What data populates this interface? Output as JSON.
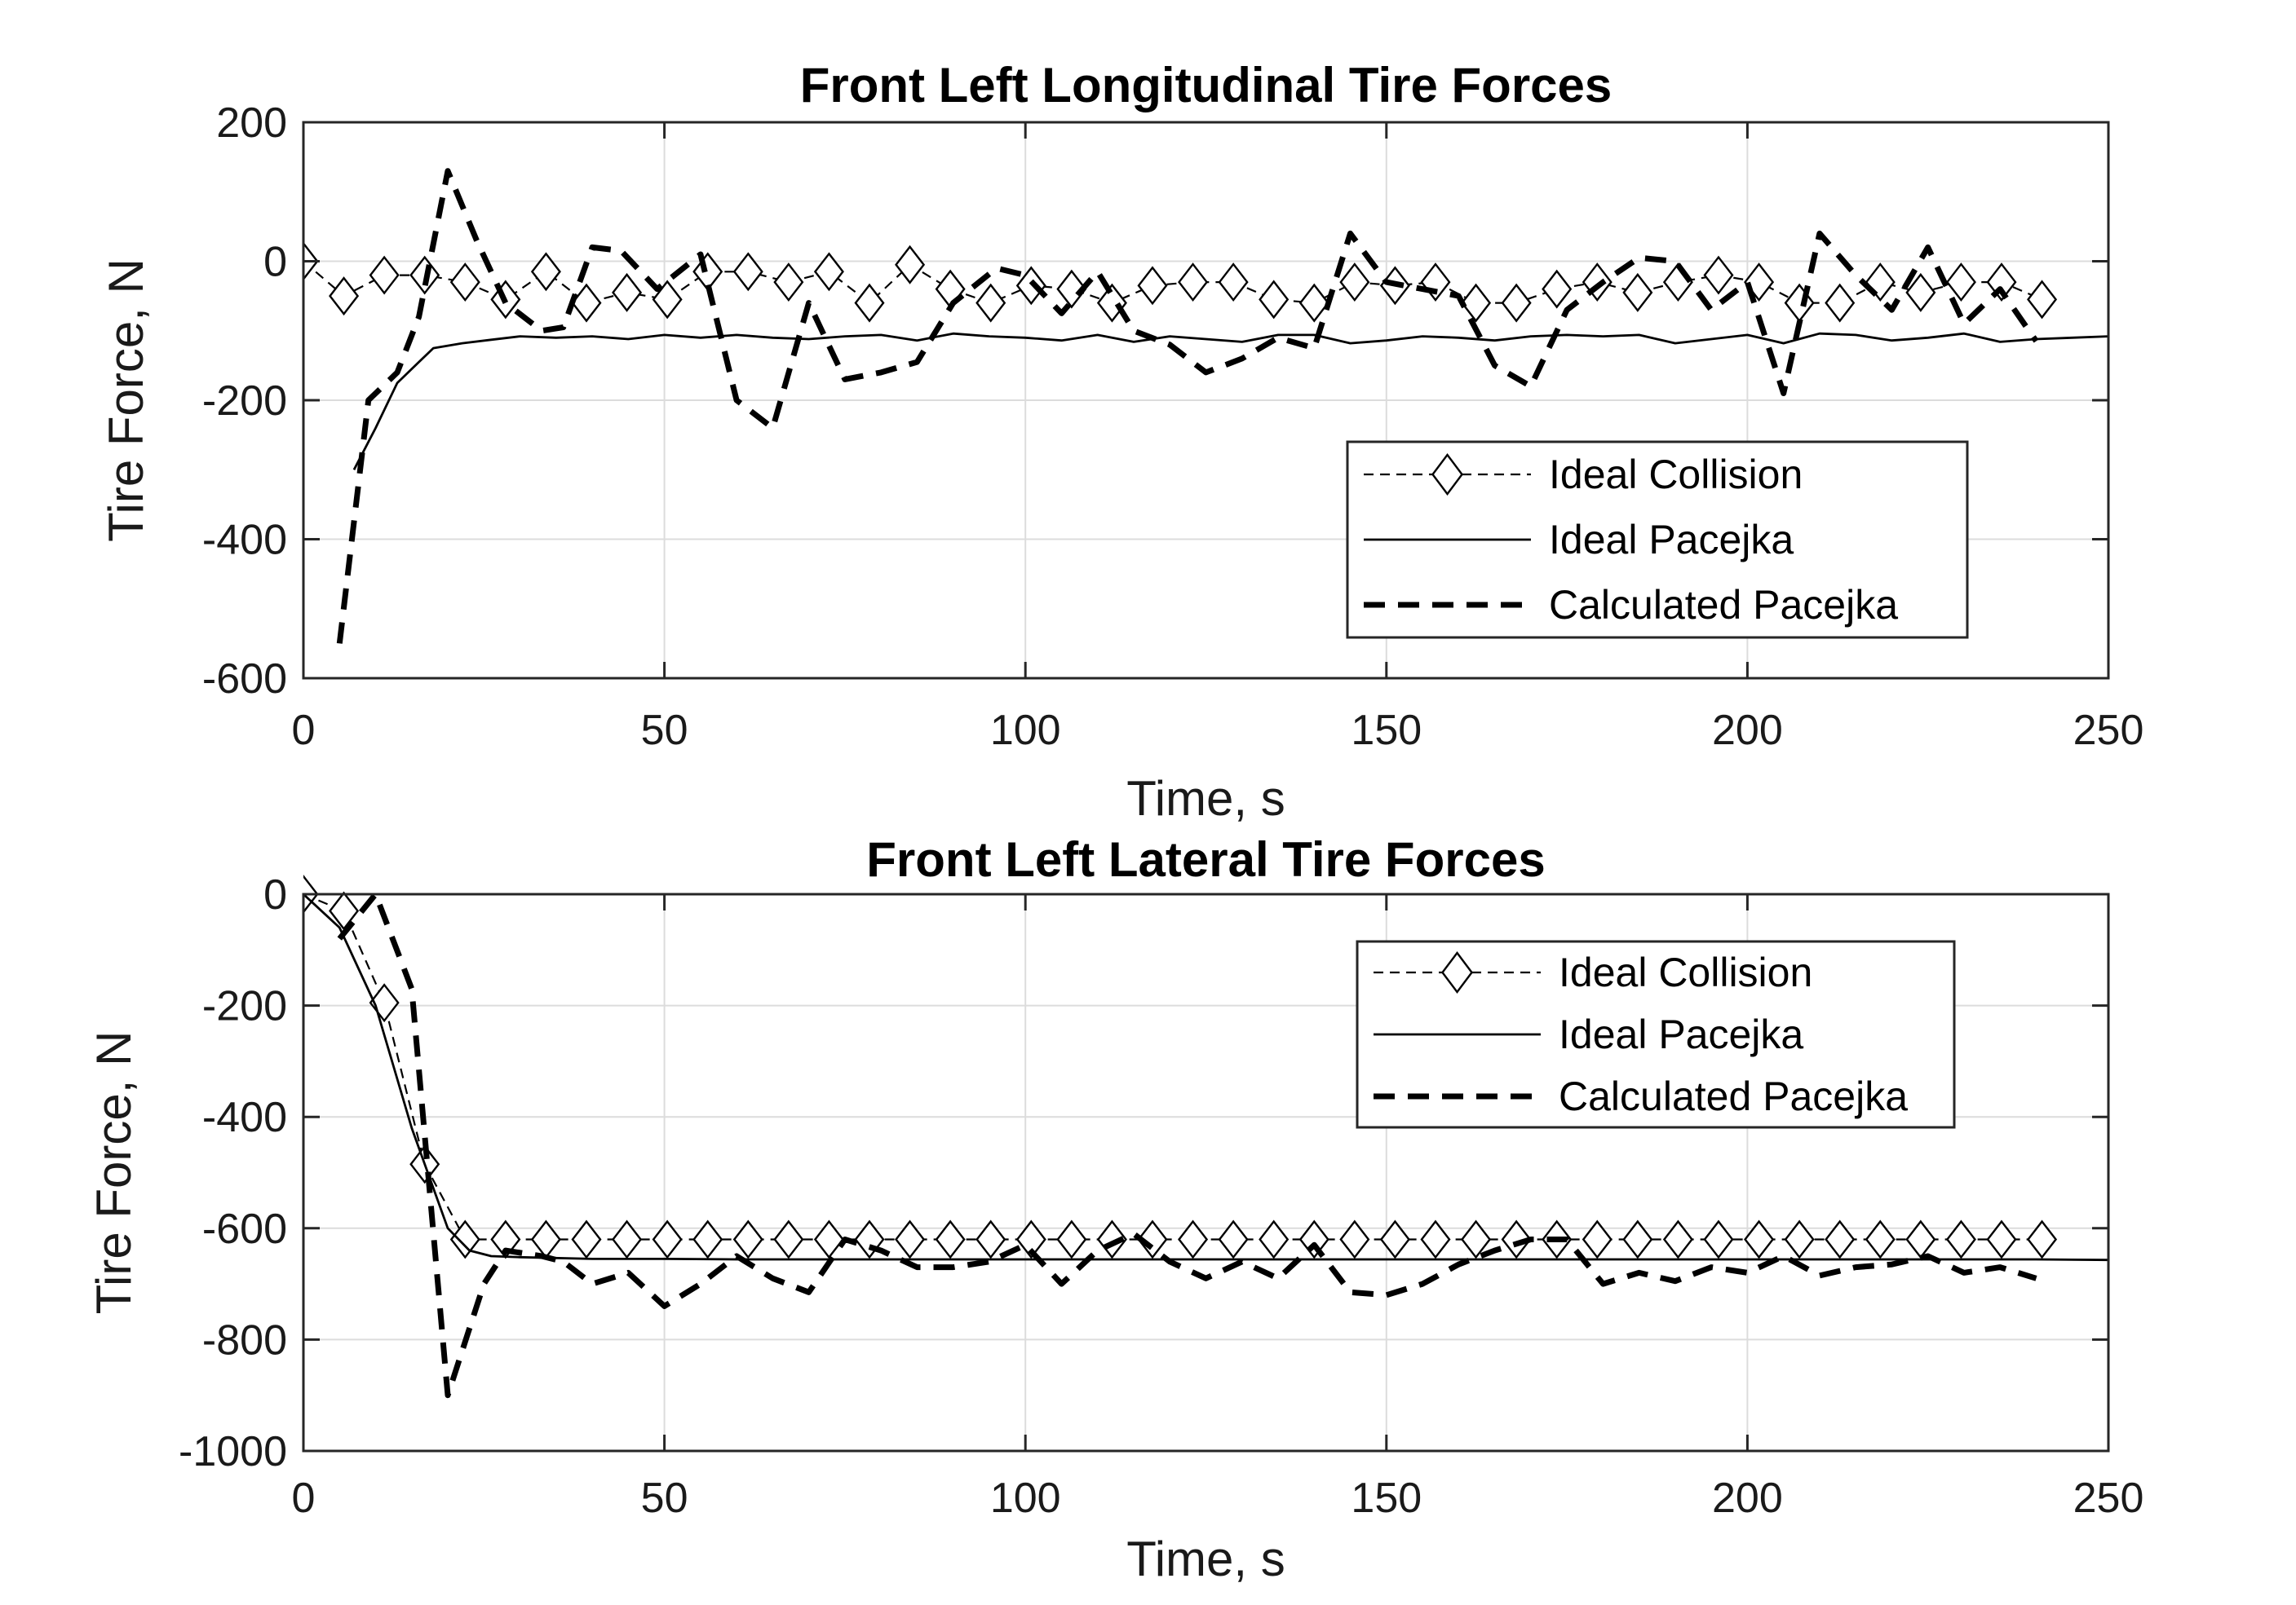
{
  "chart_data": [
    {
      "type": "line",
      "title": "Front Left Longitudinal Tire Forces",
      "xlabel": "Time, s",
      "ylabel": "Tire Force, N",
      "xlim": [
        0,
        250
      ],
      "ylim": [
        -600,
        200
      ],
      "xticks": [
        0,
        50,
        100,
        150,
        200,
        250
      ],
      "yticks": [
        -600,
        -400,
        -200,
        0,
        200
      ],
      "grid": true,
      "legend_position": "bottom-right",
      "series": [
        {
          "name": "Ideal Collision",
          "style": "thin-dashed-diamond",
          "x": [
            0,
            5.6,
            11.2,
            16.8,
            22.4,
            28,
            33.6,
            39.2,
            44.8,
            50.4,
            56,
            61.6,
            67.2,
            72.8,
            78.4,
            84,
            89.6,
            95.2,
            100.8,
            106.4,
            112,
            117.6,
            123.2,
            128.8,
            134.4,
            140,
            145.6,
            151.2,
            156.8,
            162.4,
            168,
            173.6,
            179.2,
            184.8,
            190.4,
            196,
            201.6,
            207.2,
            212.8,
            218.4,
            224,
            229.6,
            235.2,
            240.8
          ],
          "y": [
            0,
            -50,
            -20,
            -20,
            -30,
            -55,
            -15,
            -60,
            -45,
            -55,
            -15,
            -15,
            -30,
            -15,
            -60,
            -5,
            -40,
            -60,
            -35,
            -40,
            -60,
            -35,
            -30,
            -30,
            -55,
            -60,
            -30,
            -35,
            -30,
            -60,
            -60,
            -40,
            -30,
            -45,
            -30,
            -20,
            -30,
            -60,
            -60,
            -30,
            -45,
            -30,
            -30,
            -55
          ]
        },
        {
          "name": "Ideal Pacejka",
          "style": "solid",
          "x": [
            7,
            10,
            13,
            16,
            18,
            22,
            26,
            30,
            35,
            40,
            45,
            50,
            55,
            60,
            65,
            70,
            75,
            80,
            85,
            90,
            95,
            100,
            105,
            110,
            115,
            120,
            125,
            130,
            135,
            140,
            145,
            150,
            155,
            160,
            165,
            170,
            175,
            180,
            185,
            190,
            195,
            200,
            205,
            210,
            215,
            220,
            225,
            230,
            235,
            240,
            245,
            250
          ],
          "y": [
            -300,
            -240,
            -175,
            -145,
            -125,
            -118,
            -113,
            -108,
            -110,
            -108,
            -112,
            -106,
            -110,
            -106,
            -110,
            -112,
            -108,
            -106,
            -114,
            -104,
            -108,
            -110,
            -114,
            -106,
            -116,
            -108,
            -112,
            -116,
            -106,
            -106,
            -118,
            -114,
            -108,
            -110,
            -114,
            -108,
            -106,
            -108,
            -106,
            -118,
            -112,
            -106,
            -118,
            -104,
            -106,
            -114,
            -110,
            -104,
            -116,
            -112,
            -110,
            -108
          ]
        },
        {
          "name": "Calculated Pacejka",
          "style": "thick-dashed",
          "x": [
            5,
            9,
            13,
            16,
            20,
            24,
            28,
            33,
            36,
            40,
            44,
            49,
            55,
            60,
            65,
            70,
            75,
            80,
            85,
            90,
            96,
            100,
            105,
            110,
            115,
            120,
            125,
            130,
            135,
            140,
            145,
            150,
            155,
            160,
            165,
            170,
            175,
            180,
            185,
            190,
            195,
            200,
            205,
            210,
            215,
            220,
            225,
            230,
            235,
            240
          ],
          "y": [
            -550,
            -200,
            -160,
            -80,
            130,
            30,
            -60,
            -100,
            -95,
            20,
            15,
            -40,
            10,
            -200,
            -240,
            -60,
            -170,
            -160,
            -145,
            -60,
            -10,
            -20,
            -75,
            -15,
            -100,
            -120,
            -160,
            -140,
            -110,
            -125,
            40,
            -30,
            -40,
            -50,
            -150,
            -180,
            -70,
            -30,
            5,
            0,
            -70,
            -30,
            -190,
            40,
            -20,
            -70,
            20,
            -90,
            -40,
            -115
          ]
        }
      ]
    },
    {
      "type": "line",
      "title": "Front Left Lateral Tire Forces",
      "xlabel": "Time, s",
      "ylabel": "Tire Force, N",
      "xlim": [
        0,
        250
      ],
      "ylim": [
        -1000,
        0
      ],
      "xticks": [
        0,
        50,
        100,
        150,
        200,
        250
      ],
      "yticks": [
        -1000,
        -800,
        -600,
        -400,
        -200,
        0
      ],
      "grid": true,
      "legend_position": "top-right",
      "series": [
        {
          "name": "Ideal Collision",
          "style": "thin-dashed-diamond",
          "x": [
            0,
            5.6,
            11.2,
            16.8,
            22.4,
            28,
            33.6,
            39.2,
            44.8,
            50.4,
            56,
            61.6,
            67.2,
            72.8,
            78.4,
            84,
            89.6,
            95.2,
            100.8,
            106.4,
            112,
            117.6,
            123.2,
            128.8,
            134.4,
            140,
            145.6,
            151.2,
            156.8,
            162.4,
            168,
            173.6,
            179.2,
            184.8,
            190.4,
            196,
            201.6,
            207.2,
            212.8,
            218.4,
            224,
            229.6,
            235.2,
            240.8
          ],
          "y": [
            0,
            -30,
            -195,
            -485,
            -620,
            -620,
            -620,
            -620,
            -620,
            -620,
            -620,
            -620,
            -620,
            -620,
            -620,
            -620,
            -620,
            -620,
            -620,
            -620,
            -620,
            -620,
            -620,
            -620,
            -620,
            -620,
            -620,
            -620,
            -620,
            -620,
            -620,
            -620,
            -620,
            -620,
            -620,
            -620,
            -620,
            -620,
            -620,
            -620,
            -620,
            -620,
            -620,
            -620
          ]
        },
        {
          "name": "Ideal Pacejka",
          "style": "solid",
          "x": [
            0,
            5,
            10,
            15,
            20,
            23,
            26,
            30,
            40,
            50,
            60,
            70,
            80,
            90,
            100,
            110,
            120,
            130,
            140,
            150,
            160,
            170,
            180,
            190,
            200,
            210,
            220,
            230,
            240,
            250
          ],
          "y": [
            0,
            -60,
            -200,
            -420,
            -600,
            -640,
            -650,
            -652,
            -655,
            -655,
            -656,
            -656,
            -656,
            -656,
            -656,
            -656,
            -656,
            -656,
            -656,
            -656,
            -656,
            -656,
            -656,
            -656,
            -656,
            -656,
            -656,
            -656,
            -656,
            -657
          ]
        },
        {
          "name": "Calculated Pacejka",
          "style": "thick-dashed",
          "x": [
            5,
            10,
            15,
            20,
            25,
            28,
            33,
            36,
            40,
            45,
            50,
            55,
            60,
            65,
            70,
            75,
            80,
            85,
            90,
            95,
            100,
            105,
            110,
            115,
            120,
            125,
            130,
            135,
            140,
            145,
            150,
            155,
            160,
            165,
            170,
            175,
            180,
            185,
            190,
            195,
            200,
            205,
            210,
            215,
            220,
            225,
            230,
            235,
            240
          ],
          "y": [
            -80,
            0,
            -170,
            -900,
            -700,
            -640,
            -650,
            -660,
            -700,
            -680,
            -740,
            -700,
            -650,
            -690,
            -715,
            -620,
            -640,
            -670,
            -670,
            -660,
            -630,
            -700,
            -640,
            -610,
            -660,
            -690,
            -660,
            -690,
            -630,
            -715,
            -720,
            -700,
            -665,
            -640,
            -620,
            -620,
            -700,
            -680,
            -695,
            -670,
            -680,
            -650,
            -685,
            -670,
            -665,
            -650,
            -680,
            -670,
            -690
          ]
        }
      ]
    }
  ]
}
